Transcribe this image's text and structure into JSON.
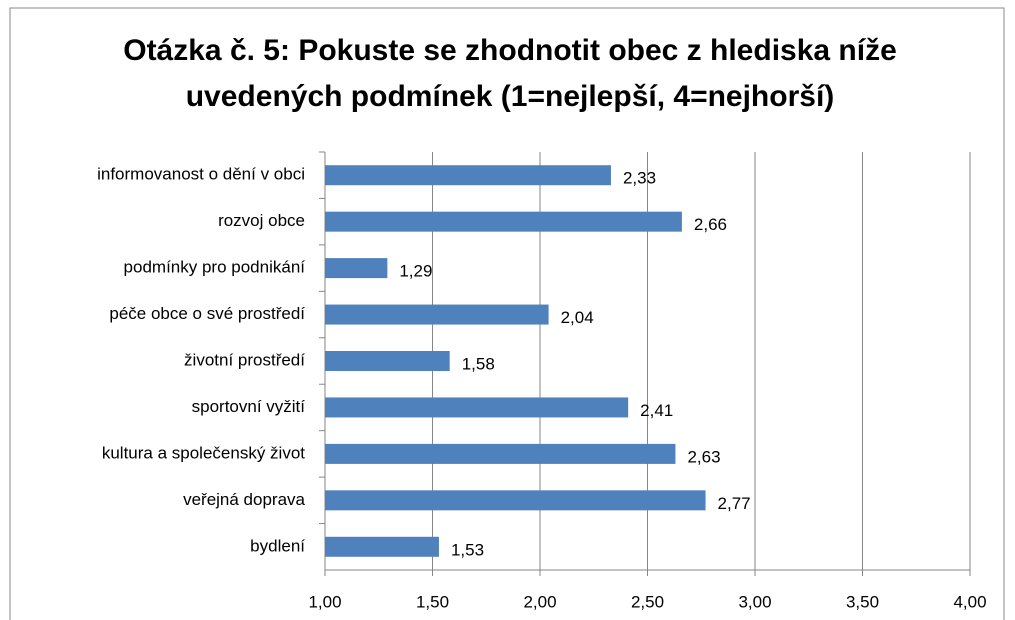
{
  "chart_data": {
    "type": "bar",
    "title": "Otázka č. 5: Pokuste se zhodnotit obec z hlediska níže uvedených podmínek (1=nejlepší, 4=nejhorší)",
    "categories": [
      "informovanost o dění v obci",
      "rozvoj obce",
      "podmínky pro podnikání",
      "péče obce o své prostředí",
      "životní prostředí",
      "sportovní vyžití",
      "kultura a společenský život",
      "veřejná doprava",
      "bydlení"
    ],
    "values": [
      2.33,
      2.66,
      1.29,
      2.04,
      1.58,
      2.41,
      2.63,
      2.77,
      1.53
    ],
    "value_labels": [
      "2,33",
      "2,66",
      "1,29",
      "2,04",
      "1,58",
      "2,41",
      "2,63",
      "2,77",
      "1,53"
    ],
    "color": "#4f81bd",
    "xlim": [
      1,
      4
    ],
    "xticks": [
      {
        "value": 1,
        "label": "1,00"
      },
      {
        "value": 1.5,
        "label": "1,50"
      },
      {
        "value": 2,
        "label": "2,00"
      },
      {
        "value": 2.5,
        "label": "2,50"
      },
      {
        "value": 3,
        "label": "3,00"
      },
      {
        "value": 3.5,
        "label": "3,50"
      },
      {
        "value": 4,
        "label": "4,00"
      }
    ],
    "grid": true
  }
}
